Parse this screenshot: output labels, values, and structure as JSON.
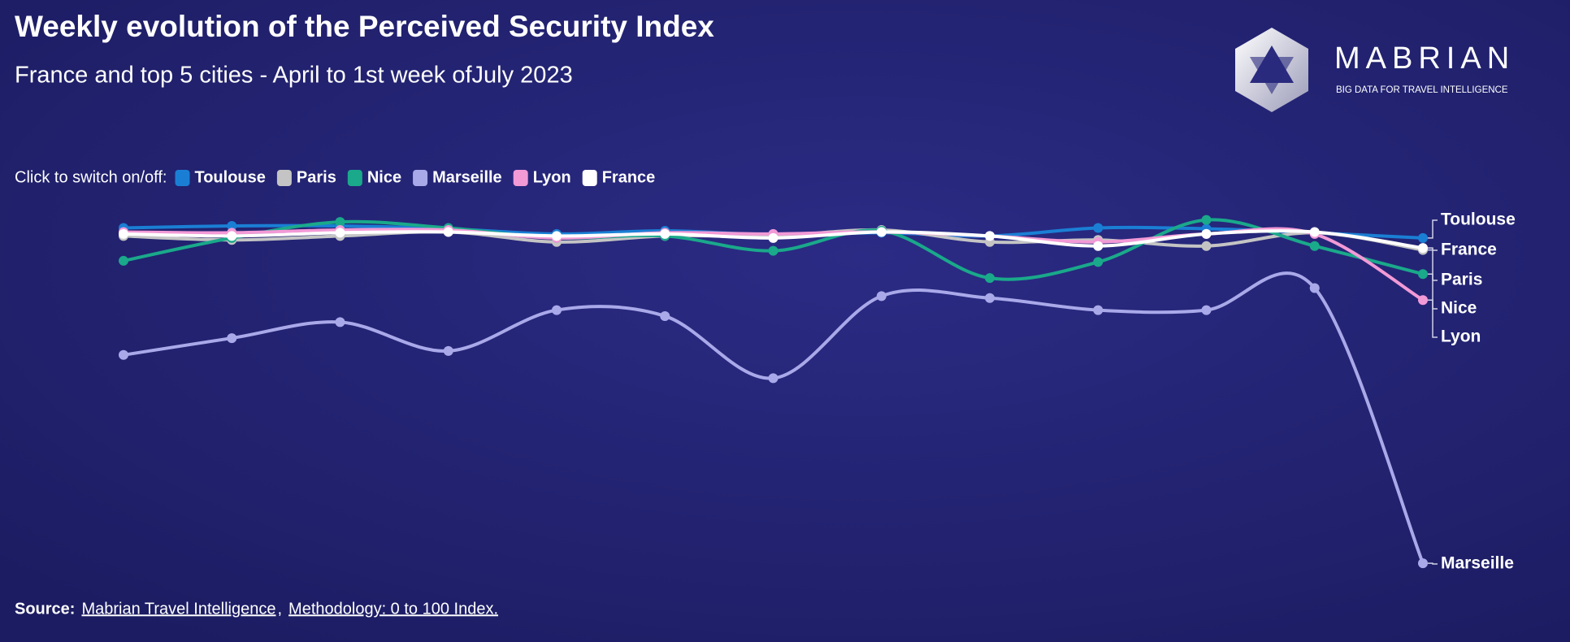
{
  "chart_data": {
    "type": "line",
    "title": "Weekly evolution of the Perceived Security Index",
    "subtitle": "France and top 5 cities - April to 1st week ofJuly 2023",
    "legend_prefix": "Click to switch on/off:",
    "categories": [
      null,
      null,
      null,
      null,
      null,
      null,
      null,
      null,
      null,
      null,
      null,
      null,
      null
    ],
    "ylim": [
      0,
      100
    ],
    "series": [
      {
        "name": "Toulouse",
        "color": "#1a7fd4",
        "values": [
          93,
          93.5,
          93.5,
          92.8,
          91.5,
          92.3,
          91.3,
          91.8,
          91,
          93,
          92.8,
          91.8,
          90.5
        ]
      },
      {
        "name": "Paris",
        "color": "#c4c4c4",
        "values": [
          91,
          90,
          91,
          92,
          89.5,
          91,
          91,
          92.5,
          89.5,
          90,
          88.5,
          91.8,
          87.5
        ]
      },
      {
        "name": "Nice",
        "color": "#1aa98a",
        "values": [
          84.8,
          90.5,
          94.5,
          93,
          90.5,
          91,
          87.3,
          92.3,
          80.5,
          84.5,
          95,
          88.5,
          81.5
        ]
      },
      {
        "name": "Marseille",
        "color": "#a9a9ea",
        "values": [
          61.3,
          65.5,
          69.5,
          62.3,
          72.5,
          71,
          55.5,
          76,
          75.5,
          72.5,
          72.5,
          78,
          9.3
        ]
      },
      {
        "name": "Lyon",
        "color": "#f29ad6",
        "values": [
          92,
          91.8,
          92.5,
          92.5,
          90.5,
          91.8,
          91.5,
          92,
          91,
          89.5,
          91.5,
          91.5,
          75
        ]
      },
      {
        "name": "France",
        "color": "#ffffff",
        "values": [
          91.5,
          91,
          91.8,
          92,
          91,
          91.5,
          90.5,
          92,
          91,
          88.5,
          91.5,
          92,
          88
        ]
      }
    ],
    "end_label_order": [
      "Toulouse",
      "France",
      "Paris",
      "Nice",
      "Lyon",
      "Marseille"
    ]
  },
  "logo": {
    "name": "MABRIAN",
    "tagline": "BIG DATA FOR TRAVEL INTELLIGENCE"
  },
  "source": [
    "Source:",
    "Mabrian Travel Intelligence",
    ",",
    "Methodology: 0 to 100 Index."
  ]
}
